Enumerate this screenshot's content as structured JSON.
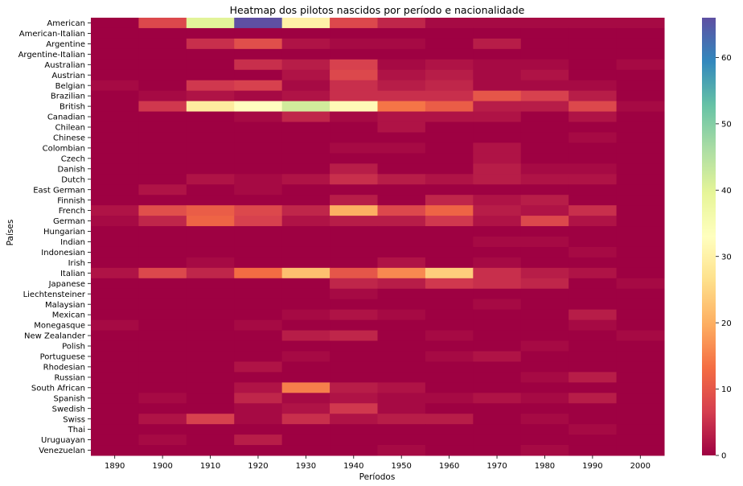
{
  "chart_data": {
    "type": "heatmap",
    "title": "Heatmap dos pilotos nascidos por período e nacionalidade",
    "xlabel": "Períodos",
    "ylabel": "Países",
    "colormap": "Spectral",
    "colorbar": {
      "min": 0,
      "max": 66,
      "ticks": [
        0,
        10,
        20,
        30,
        40,
        50,
        60
      ]
    },
    "x": [
      "1890",
      "1900",
      "1910",
      "1920",
      "1930",
      "1940",
      "1950",
      "1960",
      "1970",
      "1980",
      "1990",
      "2000"
    ],
    "y": [
      "American",
      "American-Italian",
      "Argentine",
      "Argentine-Italian",
      "Australian",
      "Austrian",
      "Belgian",
      "Brazilian",
      "British",
      "Canadian",
      "Chilean",
      "Chinese",
      "Colombian",
      "Czech",
      "Danish",
      "Dutch",
      "East German",
      "Finnish",
      "French",
      "German",
      "Hungarian",
      "Indian",
      "Indonesian",
      "Irish",
      "Italian",
      "Japanese",
      "Liechtensteiner",
      "Malaysian",
      "Mexican",
      "Monegasque",
      "New Zealander",
      "Polish",
      "Portuguese",
      "Rhodesian",
      "Russian",
      "South African",
      "Spanish",
      "Swedish",
      "Swiss",
      "Thai",
      "Uruguayan",
      "Venezuelan"
    ],
    "values": [
      [
        0,
        8,
        40,
        66,
        30,
        8,
        4,
        1,
        1,
        1,
        1,
        1
      ],
      [
        0,
        0,
        0,
        0,
        0,
        0,
        0,
        0,
        0,
        0,
        0,
        0
      ],
      [
        0,
        0,
        5,
        9,
        2,
        1,
        1,
        0,
        3,
        0,
        0,
        0
      ],
      [
        0,
        0,
        0,
        0,
        0,
        0,
        0,
        0,
        0,
        0,
        0,
        0
      ],
      [
        0,
        0,
        0,
        5,
        3,
        7,
        1,
        2,
        1,
        1,
        0,
        1
      ],
      [
        0,
        0,
        0,
        0,
        2,
        8,
        2,
        3,
        1,
        2,
        0,
        0
      ],
      [
        1,
        0,
        6,
        7,
        1,
        5,
        3,
        4,
        1,
        1,
        1,
        0
      ],
      [
        0,
        1,
        2,
        1,
        2,
        5,
        5,
        5,
        10,
        7,
        3,
        0
      ],
      [
        0,
        6,
        29,
        33,
        42,
        32,
        14,
        11,
        3,
        3,
        8,
        1
      ],
      [
        0,
        0,
        0,
        1,
        4,
        1,
        2,
        2,
        2,
        0,
        2,
        0
      ],
      [
        0,
        0,
        0,
        0,
        0,
        0,
        2,
        0,
        0,
        0,
        0,
        0
      ],
      [
        0,
        0,
        0,
        0,
        0,
        0,
        0,
        0,
        0,
        0,
        1,
        0
      ],
      [
        0,
        0,
        0,
        0,
        0,
        1,
        1,
        0,
        2,
        0,
        0,
        0
      ],
      [
        0,
        0,
        0,
        0,
        0,
        0,
        0,
        0,
        2,
        0,
        0,
        0
      ],
      [
        0,
        0,
        0,
        0,
        0,
        3,
        0,
        0,
        3,
        1,
        1,
        0
      ],
      [
        0,
        0,
        2,
        1,
        2,
        5,
        3,
        2,
        3,
        2,
        2,
        0
      ],
      [
        0,
        2,
        0,
        1,
        0,
        0,
        0,
        0,
        0,
        0,
        0,
        0
      ],
      [
        0,
        0,
        0,
        0,
        0,
        3,
        0,
        4,
        2,
        3,
        0,
        0
      ],
      [
        2,
        9,
        11,
        8,
        4,
        20,
        8,
        12,
        3,
        2,
        5,
        0
      ],
      [
        1,
        4,
        12,
        7,
        2,
        3,
        3,
        6,
        2,
        8,
        2,
        0
      ],
      [
        0,
        0,
        0,
        0,
        0,
        0,
        0,
        0,
        0,
        0,
        0,
        0
      ],
      [
        0,
        0,
        0,
        0,
        0,
        0,
        0,
        0,
        1,
        1,
        0,
        0
      ],
      [
        0,
        0,
        0,
        0,
        0,
        0,
        0,
        0,
        0,
        0,
        1,
        0
      ],
      [
        0,
        0,
        1,
        0,
        0,
        0,
        2,
        0,
        1,
        0,
        0,
        0
      ],
      [
        2,
        8,
        4,
        13,
        22,
        10,
        16,
        24,
        5,
        3,
        2,
        0
      ],
      [
        0,
        0,
        0,
        0,
        0,
        4,
        3,
        6,
        5,
        4,
        0,
        1
      ],
      [
        0,
        0,
        0,
        0,
        0,
        1,
        0,
        0,
        0,
        0,
        0,
        0
      ],
      [
        0,
        0,
        0,
        0,
        0,
        0,
        0,
        0,
        1,
        0,
        0,
        0
      ],
      [
        0,
        0,
        0,
        0,
        1,
        2,
        1,
        0,
        0,
        0,
        3,
        0
      ],
      [
        1,
        0,
        0,
        1,
        0,
        0,
        0,
        0,
        0,
        0,
        1,
        0
      ],
      [
        0,
        0,
        0,
        0,
        3,
        4,
        0,
        1,
        0,
        0,
        0,
        1
      ],
      [
        0,
        0,
        0,
        0,
        0,
        0,
        0,
        0,
        0,
        1,
        0,
        0
      ],
      [
        0,
        0,
        0,
        0,
        1,
        0,
        0,
        1,
        2,
        0,
        0,
        0
      ],
      [
        0,
        0,
        0,
        2,
        0,
        0,
        0,
        0,
        0,
        0,
        0,
        0
      ],
      [
        0,
        0,
        0,
        0,
        0,
        0,
        0,
        0,
        0,
        1,
        3,
        0
      ],
      [
        0,
        0,
        0,
        2,
        15,
        3,
        2,
        0,
        0,
        0,
        0,
        0
      ],
      [
        0,
        1,
        0,
        4,
        1,
        2,
        1,
        1,
        2,
        1,
        3,
        0
      ],
      [
        0,
        0,
        0,
        1,
        2,
        6,
        1,
        0,
        0,
        0,
        0,
        0
      ],
      [
        0,
        2,
        7,
        1,
        5,
        2,
        3,
        3,
        0,
        1,
        0,
        0
      ],
      [
        0,
        0,
        0,
        0,
        0,
        0,
        0,
        0,
        0,
        0,
        1,
        0
      ],
      [
        0,
        1,
        0,
        3,
        0,
        0,
        0,
        0,
        0,
        0,
        0,
        0
      ],
      [
        0,
        0,
        0,
        0,
        0,
        0,
        1,
        0,
        0,
        1,
        0,
        0
      ]
    ]
  }
}
